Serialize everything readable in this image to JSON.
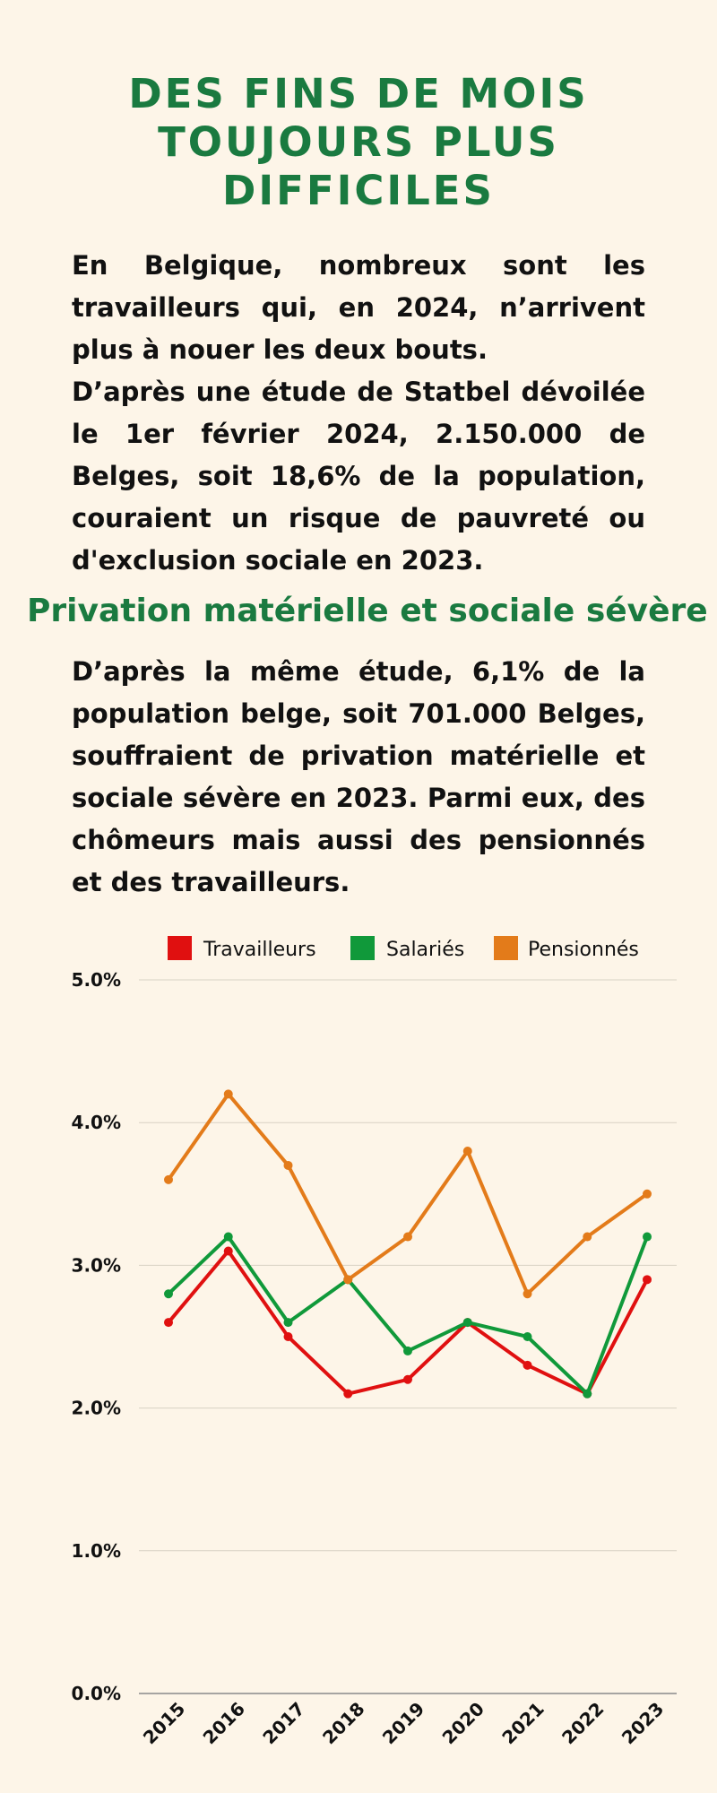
{
  "title": "DES FINS DE MOIS TOUJOURS PLUS DIFFICILES",
  "intro": {
    "paragraph1": "En Belgique, nombreux sont les travailleurs qui, en 2024, n’arrivent plus à nouer les deux bouts.",
    "paragraph2": "D’après une étude de Statbel dévoilée le 1er février 2024, 2.150.000 de Belges, soit 18,6% de la population, couraient un risque de pauvreté ou d'exclusion sociale en 2023."
  },
  "section": {
    "heading": "Privation matérielle et sociale sévère",
    "paragraph": "D’après la même étude, 6,1% de la population belge, soit 701.000 Belges, souffraient de privation matérielle et sociale sévère en 2023. Parmi eux, des chômeurs mais aussi des pensionnés et des travailleurs."
  },
  "chart_data": {
    "type": "line",
    "title": "",
    "xlabel": "",
    "ylabel": "",
    "x": [
      "2015",
      "2016",
      "2017",
      "2018",
      "2019",
      "2020",
      "2021",
      "2022",
      "2023"
    ],
    "ylim": [
      0,
      5
    ],
    "yticks": [
      "0.0%",
      "1.0%",
      "2.0%",
      "3.0%",
      "4.0%",
      "5.0%"
    ],
    "grid": "horizontal",
    "legend_position": "top",
    "series": [
      {
        "name": "Travailleurs",
        "color": "#e01010",
        "values": [
          2.6,
          3.1,
          2.5,
          2.1,
          2.2,
          2.6,
          2.3,
          2.1,
          2.9
        ]
      },
      {
        "name": "Salariés",
        "color": "#10993a",
        "values": [
          2.8,
          3.2,
          2.6,
          2.9,
          2.4,
          2.6,
          2.5,
          2.1,
          3.2
        ]
      },
      {
        "name": "Pensionnés",
        "color": "#e37b1a",
        "values": [
          3.6,
          4.2,
          3.7,
          2.9,
          3.2,
          3.8,
          2.8,
          3.2,
          3.5
        ]
      }
    ]
  }
}
